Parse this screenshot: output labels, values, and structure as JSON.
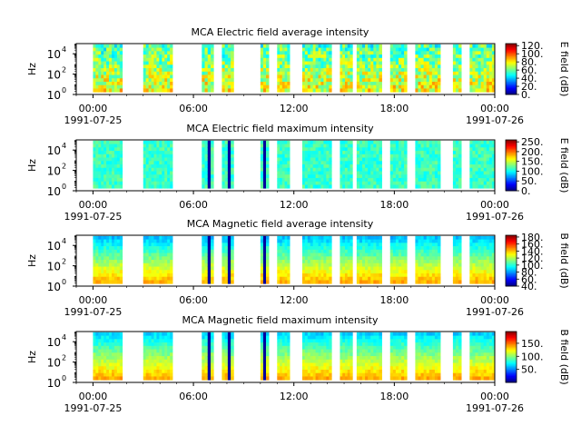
{
  "chart_data": [
    {
      "type": "heatmap",
      "title": "MCA  Electric field average intensity",
      "ylabel": "Hz",
      "yscale": "log",
      "ylim": [
        1,
        100000
      ],
      "yticks": [
        {
          "label": "10",
          "exp": "0"
        },
        {
          "label": "10",
          "exp": "2"
        },
        {
          "label": "10",
          "exp": "4"
        }
      ],
      "xticks": [
        "00:00",
        "06:00",
        "12:00",
        "18:00",
        "00:00"
      ],
      "xdates": [
        "1991-07-25",
        "1991-07-26"
      ],
      "xrange_hours": [
        -1,
        24
      ],
      "colorbar": {
        "label": "E field (dB)",
        "range": [
          0,
          125
        ],
        "ticks": [
          "120.",
          "100.",
          "80.",
          "60.",
          "40.",
          "20.",
          "0."
        ],
        "tick_values": [
          120,
          100,
          80,
          60,
          40,
          20,
          0
        ]
      },
      "profile": "E_avg",
      "segments_hours": [
        [
          0.0,
          1.75
        ],
        [
          3.0,
          4.75
        ],
        [
          6.5,
          7.2
        ],
        [
          7.7,
          8.4
        ],
        [
          10.0,
          10.5
        ],
        [
          11.0,
          11.75
        ],
        [
          12.5,
          14.25
        ],
        [
          14.75,
          15.5
        ],
        [
          15.75,
          17.25
        ],
        [
          17.75,
          18.75
        ],
        [
          19.25,
          20.75
        ],
        [
          21.5,
          22.0
        ],
        [
          22.5,
          24.0
        ]
      ]
    },
    {
      "type": "heatmap",
      "title": "MCA  Electric field maximum intensity",
      "ylabel": "Hz",
      "yscale": "log",
      "ylim": [
        1,
        100000
      ],
      "yticks": [
        {
          "label": "10",
          "exp": "0"
        },
        {
          "label": "10",
          "exp": "2"
        },
        {
          "label": "10",
          "exp": "4"
        }
      ],
      "xticks": [
        "00:00",
        "06:00",
        "12:00",
        "18:00",
        "00:00"
      ],
      "xdates": [
        "1991-07-25",
        "1991-07-26"
      ],
      "xrange_hours": [
        -1,
        24
      ],
      "colorbar": {
        "label": "E field (dB)",
        "range": [
          0,
          260
        ],
        "ticks": [
          "250.",
          "200.",
          "150.",
          "100.",
          "50.",
          "0."
        ],
        "tick_values": [
          250,
          200,
          150,
          100,
          50,
          0
        ]
      },
      "profile": "E_max",
      "segments_hours": [
        [
          0.0,
          1.75
        ],
        [
          3.0,
          4.75
        ],
        [
          6.5,
          7.2
        ],
        [
          7.7,
          8.4
        ],
        [
          10.0,
          10.5
        ],
        [
          11.0,
          11.75
        ],
        [
          12.5,
          14.25
        ],
        [
          14.75,
          15.5
        ],
        [
          15.75,
          17.25
        ],
        [
          17.75,
          18.75
        ],
        [
          19.25,
          20.75
        ],
        [
          21.5,
          22.0
        ],
        [
          22.5,
          24.0
        ]
      ]
    },
    {
      "type": "heatmap",
      "title": "MCA  Magnetic field average intensity",
      "ylabel": "Hz",
      "yscale": "log",
      "ylim": [
        1,
        100000
      ],
      "yticks": [
        {
          "label": "10",
          "exp": "0"
        },
        {
          "label": "10",
          "exp": "2"
        },
        {
          "label": "10",
          "exp": "4"
        }
      ],
      "xticks": [
        "00:00",
        "06:00",
        "12:00",
        "18:00",
        "00:00"
      ],
      "xdates": [
        "1991-07-25",
        "1991-07-26"
      ],
      "xrange_hours": [
        -1,
        24
      ],
      "colorbar": {
        "label": "B field (dB)",
        "range": [
          40,
          185
        ],
        "ticks": [
          "180.",
          "160.",
          "140.",
          "120.",
          "100.",
          "80.",
          "60.",
          "40."
        ],
        "tick_values": [
          180,
          160,
          140,
          120,
          100,
          80,
          60,
          40
        ]
      },
      "profile": "B_avg",
      "segments_hours": [
        [
          0.0,
          1.75
        ],
        [
          3.0,
          4.75
        ],
        [
          6.5,
          7.2
        ],
        [
          7.7,
          8.4
        ],
        [
          10.0,
          10.5
        ],
        [
          11.0,
          11.75
        ],
        [
          12.5,
          14.25
        ],
        [
          14.75,
          15.5
        ],
        [
          15.75,
          17.25
        ],
        [
          17.75,
          18.75
        ],
        [
          19.25,
          20.75
        ],
        [
          21.5,
          22.0
        ],
        [
          22.5,
          24.0
        ]
      ]
    },
    {
      "type": "heatmap",
      "title": "MCA  Magnetic field maximum intensity",
      "ylabel": "Hz",
      "yscale": "log",
      "ylim": [
        1,
        100000
      ],
      "yticks": [
        {
          "label": "10",
          "exp": "0"
        },
        {
          "label": "10",
          "exp": "2"
        },
        {
          "label": "10",
          "exp": "4"
        }
      ],
      "xticks": [
        "00:00",
        "06:00",
        "12:00",
        "18:00",
        "00:00"
      ],
      "xdates": [
        "1991-07-25",
        "1991-07-26"
      ],
      "xrange_hours": [
        -1,
        24
      ],
      "colorbar": {
        "label": "B field (dB)",
        "range": [
          0,
          195
        ],
        "ticks": [
          "150.",
          "100.",
          "50."
        ],
        "tick_values": [
          150,
          100,
          50
        ]
      },
      "profile": "B_max",
      "segments_hours": [
        [
          0.0,
          1.75
        ],
        [
          3.0,
          4.75
        ],
        [
          6.5,
          7.2
        ],
        [
          7.7,
          8.4
        ],
        [
          10.0,
          10.5
        ],
        [
          11.0,
          11.75
        ],
        [
          12.5,
          14.25
        ],
        [
          14.75,
          15.5
        ],
        [
          15.75,
          17.25
        ],
        [
          17.75,
          18.75
        ],
        [
          19.25,
          20.75
        ],
        [
          21.5,
          22.0
        ],
        [
          22.5,
          24.0
        ]
      ]
    }
  ]
}
